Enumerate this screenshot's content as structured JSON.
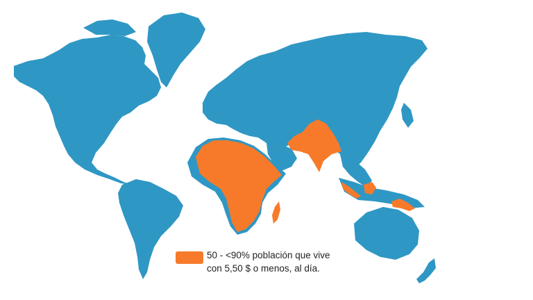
{
  "map": {
    "colors": {
      "background": "#ffffff",
      "land": "#2f97c4",
      "highlight": "#f77a2a"
    },
    "regions": [
      {
        "name": "north-america",
        "category": "base"
      },
      {
        "name": "greenland",
        "category": "base"
      },
      {
        "name": "south-america",
        "category": "base"
      },
      {
        "name": "europe-asia",
        "category": "base"
      },
      {
        "name": "australia",
        "category": "base"
      },
      {
        "name": "new-zealand",
        "category": "base"
      },
      {
        "name": "africa",
        "category": "highlight"
      },
      {
        "name": "madagascar",
        "category": "highlight"
      },
      {
        "name": "south-asia",
        "category": "highlight"
      },
      {
        "name": "sumatra-borneo",
        "category": "highlight"
      },
      {
        "name": "new-guinea",
        "category": "highlight"
      }
    ]
  },
  "legend": {
    "line1": "50 - <90% población que vive",
    "line2": "con 5,50 $ o menos, al día.",
    "swatch_color": "#f77a2a"
  }
}
